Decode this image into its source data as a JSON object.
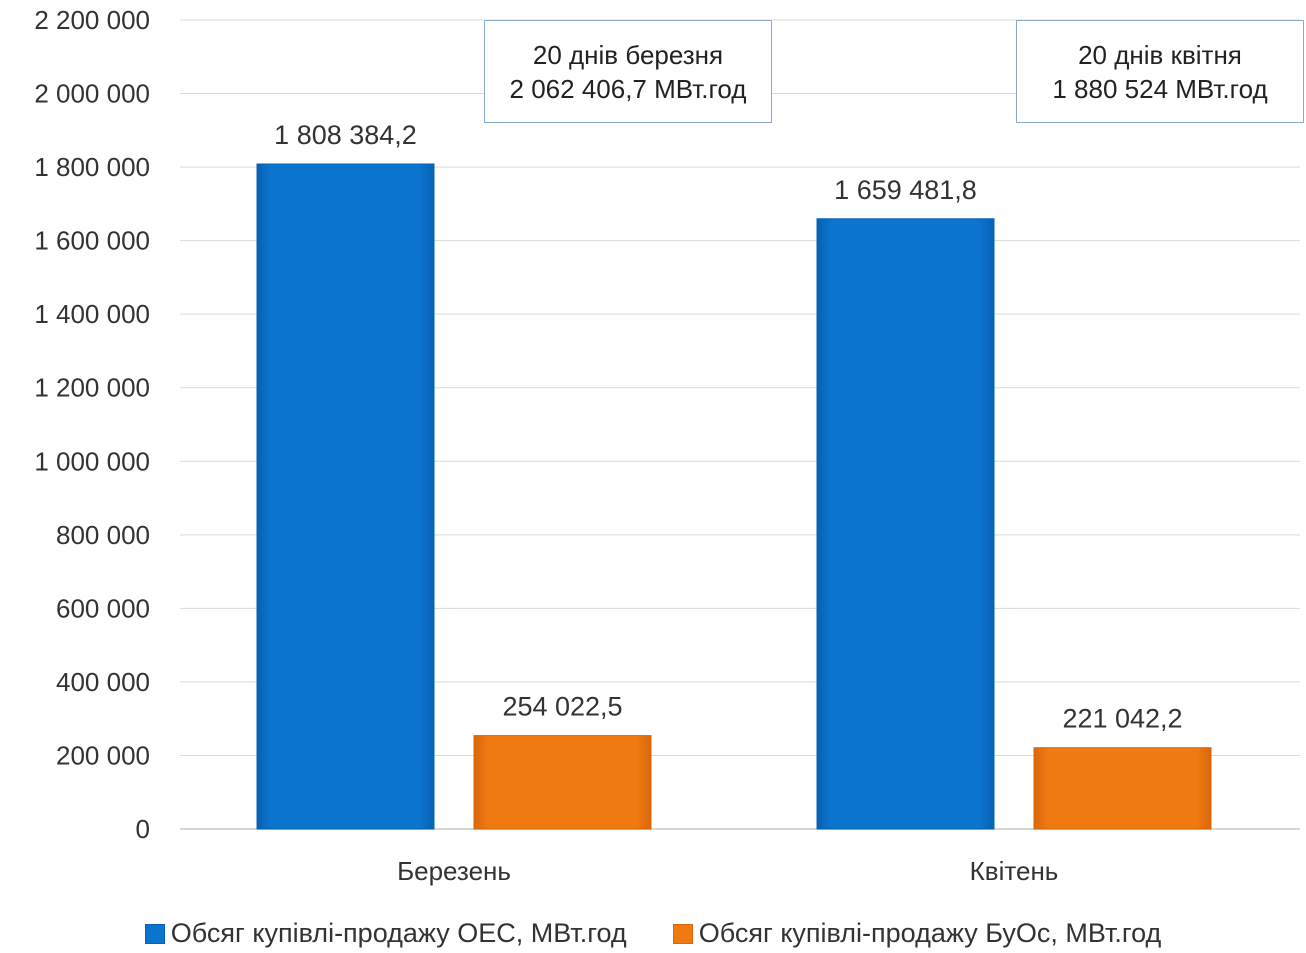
{
  "chart_data": {
    "type": "bar",
    "categories": [
      "Березень",
      "Квітень"
    ],
    "series": [
      {
        "name": "Обсяг купівлі-продажу ОЕС, МВт.год",
        "values": [
          1808384.2,
          1659481.8
        ],
        "labels": [
          "1 808 384,2",
          "1 659 481,8"
        ],
        "color": "#0a74cf"
      },
      {
        "name": "Обсяг купівлі-продажу БуОс, МВт.год",
        "values": [
          254022.5,
          221042.2
        ],
        "labels": [
          "254 022,5",
          "221 042,2"
        ],
        "color": "#f07a12"
      }
    ],
    "ylim": [
      0,
      2200000
    ],
    "yticks": [
      0,
      200000,
      400000,
      600000,
      800000,
      1000000,
      1200000,
      1400000,
      1600000,
      1800000,
      2000000,
      2200000
    ],
    "ytick_labels": [
      "0",
      "200 000",
      "400 000",
      "600 000",
      "800 000",
      "1 000 000",
      "1 200 000",
      "1 400 000",
      "1 600 000",
      "1 800 000",
      "2 000 000",
      "2 200 000"
    ],
    "grid": true,
    "legend_position": "bottom",
    "annotations": [
      {
        "line1": "20 днів березня",
        "line2": "2 062 406,7 МВт.год"
      },
      {
        "line1": "20 днів квітня",
        "line2": "1 880 524 МВт.год"
      }
    ]
  }
}
